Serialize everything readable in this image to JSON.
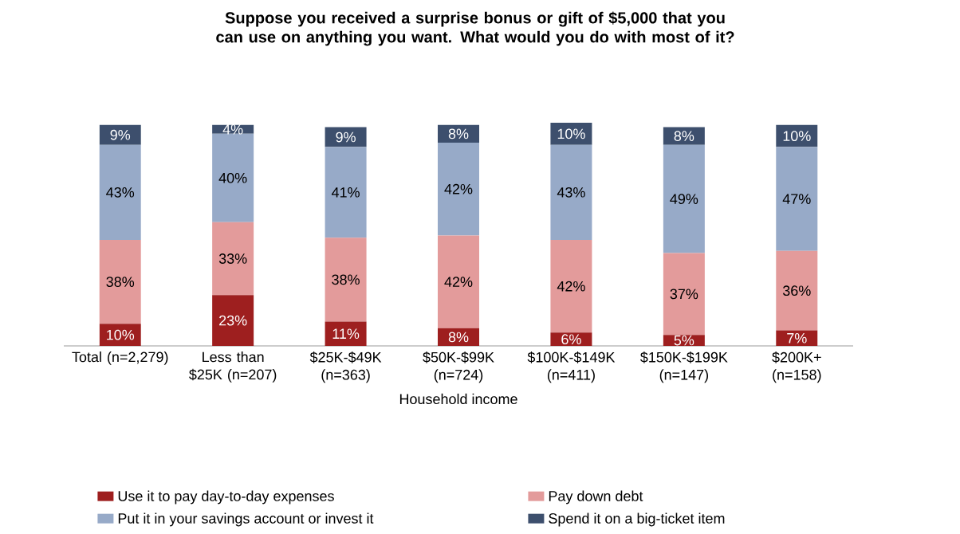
{
  "chart_data": {
    "type": "bar",
    "stacked": true,
    "title": "Suppose you received a surprise bonus or gift of $5,000 that you can use on anything you want. What would you do with most of it?",
    "xlabel": "Household income",
    "categories": [
      "Total (n=2,279)",
      "Less than $25K (n=207)",
      "$25K-$49K (n=363)",
      "$50K-$99K (n=724)",
      "$100K-$149K (n=411)",
      "$150K-$199K (n=147)",
      "$200K+ (n=158)"
    ],
    "series": [
      {
        "name": "Use it to pay day-to-day expenses",
        "color": "#9e1f1f",
        "values": [
          10,
          23,
          11,
          8,
          6,
          5,
          7
        ],
        "value_labels": [
          "10%",
          "23%",
          "11%",
          "8%",
          "6%",
          "5%",
          "7%"
        ]
      },
      {
        "name": "Pay down debt",
        "color": "#e39b9b",
        "values": [
          38,
          33,
          38,
          42,
          42,
          37,
          36
        ],
        "value_labels": [
          "38%",
          "33%",
          "38%",
          "42%",
          "42%",
          "37%",
          "36%"
        ]
      },
      {
        "name": "Put it in your savings account or invest it",
        "color": "#97aac8",
        "values": [
          43,
          40,
          41,
          42,
          43,
          49,
          47
        ],
        "value_labels": [
          "43%",
          "40%",
          "41%",
          "42%",
          "43%",
          "49%",
          "47%"
        ]
      },
      {
        "name": "Spend it on a big-ticket item",
        "color": "#3d4f6d",
        "values": [
          9,
          4,
          9,
          8,
          10,
          8,
          10
        ],
        "value_labels": [
          "9%",
          "4%",
          "9%",
          "8%",
          "10%",
          "8%",
          "10%"
        ]
      }
    ],
    "legend": "bottom"
  }
}
